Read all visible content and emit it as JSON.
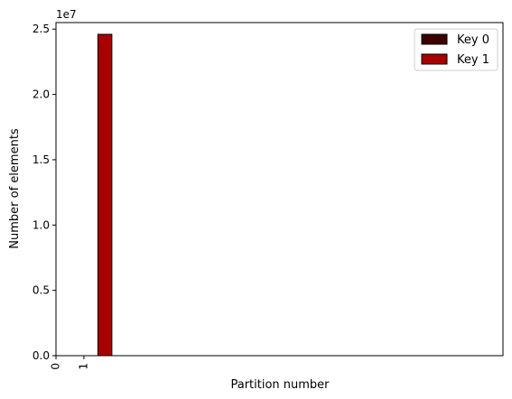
{
  "chart_data": {
    "type": "bar",
    "xlabel": "Partition number",
    "ylabel": "Number of elements",
    "categories": [
      "0",
      "1"
    ],
    "series": [
      {
        "name": "Key 0",
        "color": "#3d0000",
        "values": [
          0,
          0
        ]
      },
      {
        "name": "Key 1",
        "color": "#a80000",
        "values": [
          0,
          24600000
        ]
      }
    ],
    "ylim": [
      0,
      25500000
    ],
    "xlim": [
      0,
      16
    ],
    "yticks": [
      0,
      5000000,
      10000000,
      15000000,
      20000000,
      25000000
    ],
    "ytick_labels": [
      "0.0",
      "0.5",
      "1.0",
      "1.5",
      "2.0",
      "2.5"
    ],
    "offset_label": "1e7",
    "legend_position": "top-right",
    "grid": false
  }
}
